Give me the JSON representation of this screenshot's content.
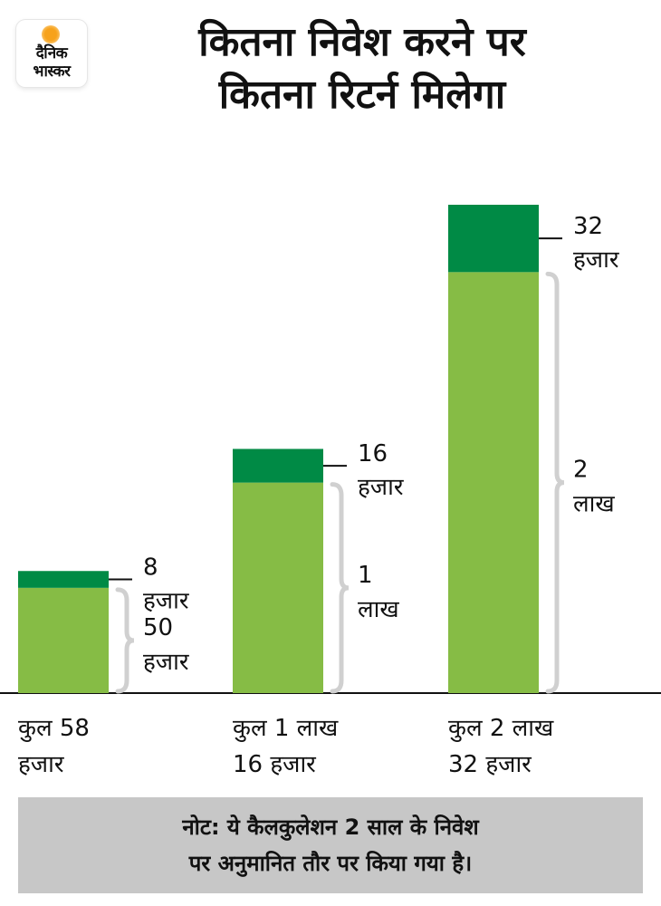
{
  "logo": {
    "line1": "दैनिक",
    "line2": "भास्कर"
  },
  "title": {
    "line1": "कितना निवेश करने पर",
    "line2": "कितना रिटर्न मिलेगा"
  },
  "colors": {
    "investment": "#86bc45",
    "return": "#008a45",
    "note_bg": "#c7c7c7",
    "brace": "#d0d0d0"
  },
  "chart_data": {
    "type": "bar",
    "stacked": true,
    "categories": [
      [
        "कुल 58",
        "हजार"
      ],
      [
        "कुल 1 लाख",
        "16 हजार"
      ],
      [
        "कुल 2 लाख",
        "32 हजार"
      ]
    ],
    "series": [
      {
        "values": [
          50000,
          100000,
          200000
        ],
        "labels": [
          [
            "50",
            "हजार"
          ],
          [
            "1",
            "लाख"
          ],
          [
            "2",
            "लाख"
          ]
        ]
      },
      {
        "values": [
          8000,
          16000,
          32000
        ],
        "labels": [
          [
            "8",
            "हजार"
          ],
          [
            "16",
            "हजार"
          ],
          [
            "32",
            "हजार"
          ]
        ]
      }
    ],
    "ylim": [
      0,
      232000
    ],
    "grid": false,
    "title": "",
    "xlabel": "",
    "ylabel": ""
  },
  "note": {
    "line1": "नोट: ये कैलकुलेशन 2 साल के निवेश",
    "line2": "पर अनुमानित तौर पर किया गया है।"
  }
}
